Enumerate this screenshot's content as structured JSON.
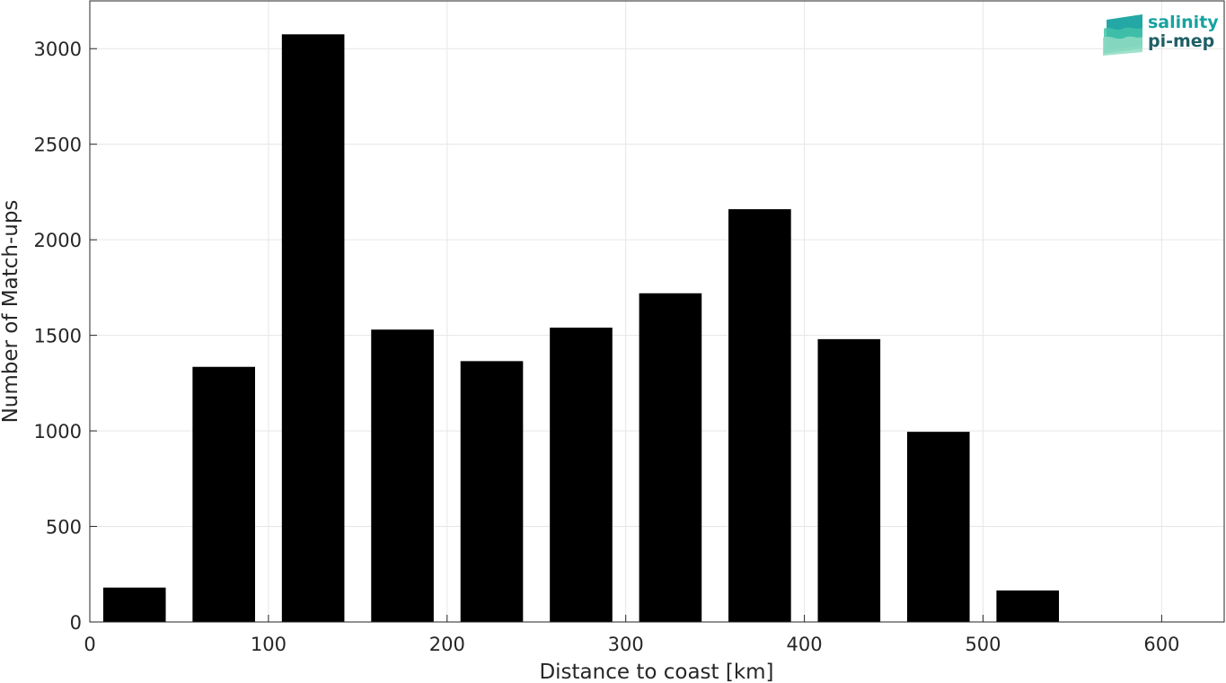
{
  "logo": {
    "line1": "salinity",
    "line2": "pi-mep",
    "color_primary": "#17a3a0",
    "color_secondary": "#1f5f66"
  },
  "chart_data": {
    "type": "bar",
    "xlabel": "Distance to coast [km]",
    "ylabel": "Number of Match-ups",
    "xlim": [
      0,
      635
    ],
    "ylim": [
      0,
      3250
    ],
    "xticks": [
      0,
      100,
      200,
      300,
      400,
      500,
      600
    ],
    "yticks": [
      0,
      500,
      1000,
      1500,
      2000,
      2500,
      3000
    ],
    "grid": true,
    "bar_color": "#000000",
    "bar_width": 35,
    "bins": [
      {
        "x": 25,
        "value": 180
      },
      {
        "x": 75,
        "value": 1335
      },
      {
        "x": 125,
        "value": 3075
      },
      {
        "x": 175,
        "value": 1530
      },
      {
        "x": 225,
        "value": 1365
      },
      {
        "x": 275,
        "value": 1540
      },
      {
        "x": 325,
        "value": 1720
      },
      {
        "x": 375,
        "value": 2160
      },
      {
        "x": 425,
        "value": 1480
      },
      {
        "x": 475,
        "value": 995
      },
      {
        "x": 525,
        "value": 165
      },
      {
        "x": 575,
        "value": 0
      }
    ]
  }
}
